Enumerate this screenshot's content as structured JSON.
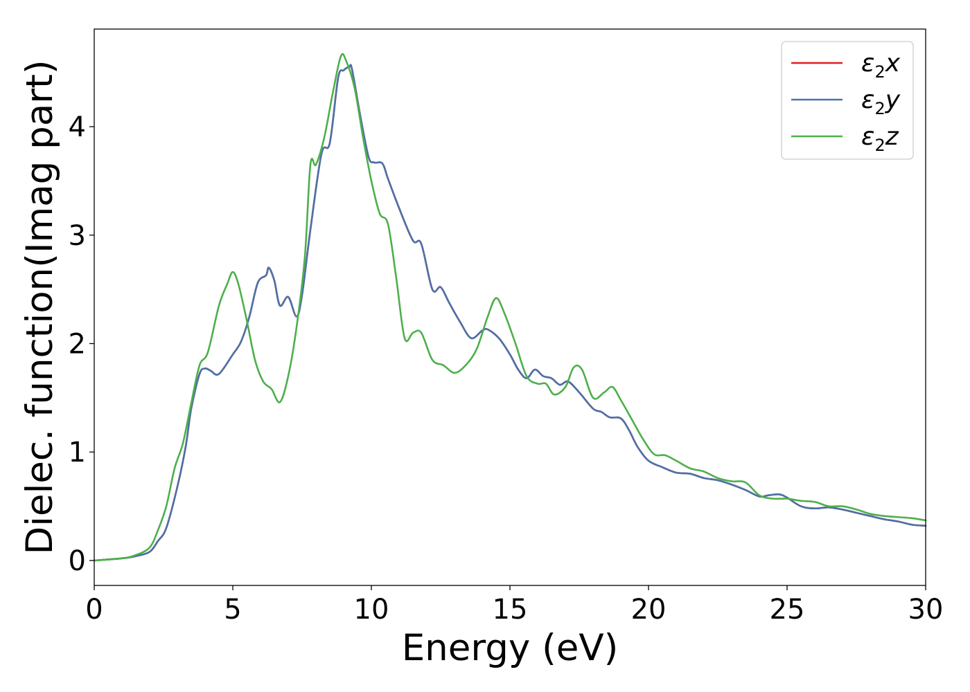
{
  "chart_data": {
    "type": "line",
    "title": "",
    "xlabel": "Energy (eV)",
    "ylabel": "Dielec. function(Imag part)",
    "xlim": [
      0,
      30
    ],
    "ylim": [
      -0.23,
      4.9
    ],
    "xticks": [
      0,
      5,
      10,
      15,
      20,
      25,
      30
    ],
    "yticks": [
      0,
      1,
      2,
      3,
      4
    ],
    "grid": false,
    "legend_position": "upper right",
    "series": [
      {
        "name": "ε2x",
        "label_base": "ε",
        "label_sub": "2",
        "label_suffix": "x",
        "color": "#e41a1c",
        "x": [
          0,
          1,
          1.5,
          2,
          2.3,
          2.6,
          3,
          3.3,
          3.5,
          3.8,
          4,
          4.2,
          4.5,
          5,
          5.3,
          5.6,
          5.9,
          6.2,
          6.3,
          6.5,
          6.7,
          7,
          7.3,
          7.5,
          7.8,
          8.2,
          8.5,
          8.8,
          9,
          9.2,
          9.3,
          9.6,
          9.9,
          10.1,
          10.4,
          10.6,
          11,
          11.5,
          11.8,
          12.2,
          12.5,
          12.8,
          13.2,
          13.6,
          14,
          14.2,
          14.6,
          15,
          15.3,
          15.6,
          15.9,
          16.2,
          16.5,
          16.8,
          17.1,
          17.5,
          18,
          18.3,
          18.6,
          19,
          19.3,
          19.6,
          20,
          20.5,
          21,
          21.5,
          22,
          22.5,
          23,
          23.5,
          24,
          24.3,
          24.7,
          25,
          25.5,
          26,
          26.5,
          27,
          27.5,
          28,
          28.5,
          29,
          29.5,
          30
        ],
        "values": [
          0,
          0.02,
          0.04,
          0.08,
          0.18,
          0.3,
          0.68,
          1.05,
          1.4,
          1.72,
          1.77,
          1.75,
          1.72,
          1.9,
          2.02,
          2.25,
          2.56,
          2.63,
          2.7,
          2.58,
          2.35,
          2.43,
          2.25,
          2.45,
          3.05,
          3.75,
          3.85,
          4.45,
          4.52,
          4.55,
          4.53,
          4.1,
          3.72,
          3.67,
          3.66,
          3.52,
          3.25,
          2.95,
          2.92,
          2.5,
          2.52,
          2.38,
          2.2,
          2.05,
          2.12,
          2.13,
          2.05,
          1.9,
          1.76,
          1.68,
          1.76,
          1.7,
          1.68,
          1.62,
          1.65,
          1.55,
          1.4,
          1.37,
          1.32,
          1.31,
          1.2,
          1.05,
          0.92,
          0.86,
          0.81,
          0.8,
          0.76,
          0.74,
          0.7,
          0.65,
          0.59,
          0.6,
          0.61,
          0.58,
          0.5,
          0.48,
          0.49,
          0.47,
          0.44,
          0.41,
          0.38,
          0.36,
          0.33,
          0.32
        ]
      },
      {
        "name": "ε2y",
        "label_base": "ε",
        "label_sub": "2",
        "label_suffix": "y",
        "color": "#4a72a9",
        "x": [
          0,
          1,
          1.5,
          2,
          2.3,
          2.6,
          3,
          3.3,
          3.5,
          3.8,
          4,
          4.2,
          4.5,
          5,
          5.3,
          5.6,
          5.9,
          6.2,
          6.3,
          6.5,
          6.7,
          7,
          7.3,
          7.5,
          7.8,
          8.2,
          8.5,
          8.8,
          9,
          9.2,
          9.3,
          9.6,
          9.9,
          10.1,
          10.4,
          10.6,
          11,
          11.5,
          11.8,
          12.2,
          12.5,
          12.8,
          13.2,
          13.6,
          14,
          14.2,
          14.6,
          15,
          15.3,
          15.6,
          15.9,
          16.2,
          16.5,
          16.8,
          17.1,
          17.5,
          18,
          18.3,
          18.6,
          19,
          19.3,
          19.6,
          20,
          20.5,
          21,
          21.5,
          22,
          22.5,
          23,
          23.5,
          24,
          24.3,
          24.7,
          25,
          25.5,
          26,
          26.5,
          27,
          27.5,
          28,
          28.5,
          29,
          29.5,
          30
        ],
        "values": [
          0,
          0.02,
          0.04,
          0.08,
          0.18,
          0.3,
          0.68,
          1.05,
          1.4,
          1.72,
          1.77,
          1.75,
          1.72,
          1.9,
          2.02,
          2.25,
          2.56,
          2.63,
          2.7,
          2.58,
          2.35,
          2.43,
          2.25,
          2.45,
          3.05,
          3.75,
          3.85,
          4.45,
          4.52,
          4.55,
          4.53,
          4.1,
          3.72,
          3.67,
          3.66,
          3.52,
          3.25,
          2.95,
          2.92,
          2.5,
          2.52,
          2.38,
          2.2,
          2.05,
          2.12,
          2.13,
          2.05,
          1.9,
          1.76,
          1.68,
          1.76,
          1.7,
          1.68,
          1.62,
          1.65,
          1.55,
          1.4,
          1.37,
          1.32,
          1.31,
          1.2,
          1.05,
          0.92,
          0.86,
          0.81,
          0.8,
          0.76,
          0.74,
          0.7,
          0.65,
          0.59,
          0.6,
          0.61,
          0.58,
          0.5,
          0.48,
          0.49,
          0.47,
          0.44,
          0.41,
          0.38,
          0.36,
          0.33,
          0.32
        ]
      },
      {
        "name": "ε2z",
        "label_base": "ε",
        "label_sub": "2",
        "label_suffix": "z",
        "color": "#4daf4a",
        "x": [
          0,
          1,
          1.5,
          2,
          2.3,
          2.6,
          2.9,
          3.2,
          3.5,
          3.8,
          4.1,
          4.5,
          4.8,
          5,
          5.2,
          5.5,
          5.8,
          6.1,
          6.4,
          6.7,
          7,
          7.3,
          7.6,
          7.8,
          8,
          8.3,
          8.6,
          8.9,
          9.1,
          9.4,
          9.7,
          10,
          10.3,
          10.6,
          10.9,
          11.2,
          11.5,
          11.8,
          12.2,
          12.6,
          13,
          13.4,
          13.8,
          14.2,
          14.5,
          14.8,
          15.2,
          15.6,
          16,
          16.3,
          16.6,
          17,
          17.3,
          17.6,
          18,
          18.4,
          18.7,
          19,
          19.4,
          19.8,
          20.2,
          20.6,
          21,
          21.5,
          22,
          22.5,
          23,
          23.5,
          24,
          24.5,
          25,
          25.5,
          26,
          26.5,
          27,
          27.5,
          28,
          28.5,
          29,
          29.5,
          30
        ],
        "values": [
          0,
          0.02,
          0.05,
          0.12,
          0.28,
          0.5,
          0.85,
          1.08,
          1.45,
          1.8,
          1.92,
          2.35,
          2.55,
          2.66,
          2.55,
          2.22,
          1.85,
          1.65,
          1.58,
          1.46,
          1.7,
          2.15,
          2.8,
          3.65,
          3.65,
          3.9,
          4.3,
          4.65,
          4.6,
          4.35,
          3.9,
          3.5,
          3.2,
          3.1,
          2.6,
          2.05,
          2.1,
          2.1,
          1.85,
          1.8,
          1.73,
          1.8,
          1.95,
          2.25,
          2.42,
          2.28,
          2.0,
          1.7,
          1.63,
          1.63,
          1.53,
          1.6,
          1.78,
          1.76,
          1.5,
          1.55,
          1.6,
          1.48,
          1.3,
          1.12,
          0.98,
          0.97,
          0.92,
          0.85,
          0.82,
          0.76,
          0.73,
          0.72,
          0.6,
          0.57,
          0.57,
          0.55,
          0.54,
          0.5,
          0.5,
          0.47,
          0.43,
          0.41,
          0.4,
          0.39,
          0.37
        ]
      }
    ]
  }
}
